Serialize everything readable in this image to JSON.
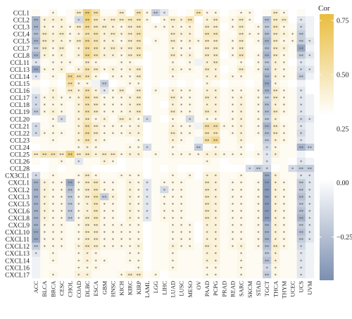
{
  "chart_data": {
    "type": "heatmap",
    "title": "",
    "legend": {
      "title": "Cor",
      "placement": "right",
      "ticks": [
        0.75,
        0.5,
        0.25,
        0.0,
        -0.25
      ],
      "tick_labels": [
        "0.75",
        "0.50",
        "0.25",
        "0.00",
        "−0.25"
      ],
      "range": [
        -0.45,
        0.78
      ]
    },
    "colorscale": {
      "low": "#7b8fb0",
      "mid": "#ffffff",
      "high": "#e9bd3f"
    },
    "rows": [
      "CCL1",
      "CCL2",
      "CCL3",
      "CCL4",
      "CCL5",
      "CCL7",
      "CCL8",
      "CCL11",
      "CCL13",
      "CCL14",
      "CCL15",
      "CCL16",
      "CCL17",
      "CCL18",
      "CCL19",
      "CCL20",
      "CCL21",
      "CCL22",
      "CCL23",
      "CCL24",
      "CCL25",
      "CCL26",
      "CCL28",
      "CX3CL1",
      "CXCL1",
      "CXCL2",
      "CXCL3",
      "CXCL5",
      "CXCL6",
      "CXCL8",
      "CXCL9",
      "CXCL10",
      "CXCL11",
      "CXCL12",
      "CXCL13",
      "CXCL14",
      "CXCL16",
      "CXCL17"
    ],
    "columns": [
      "ACC",
      "BLCA",
      "BRCA",
      "CESC",
      "CHOL",
      "COAD",
      "DLBC",
      "ESCA",
      "GBM",
      "HNSC",
      "KICH",
      "KIRC",
      "KIRP",
      "LAML",
      "LGG",
      "LIHC",
      "LUAD",
      "LUSC",
      "MESO",
      "OV",
      "PAAD",
      "PCPG",
      "PRAD",
      "READ",
      "SARC",
      "SKCM",
      "STAD",
      "TGCT",
      "THCA",
      "THYM",
      "UCEC",
      "UCS",
      "UVM"
    ],
    "values": [
      [
        0.05,
        0.0,
        0.1,
        0.0,
        0.05,
        0.2,
        0.55,
        0.35,
        0.05,
        0.05,
        0.2,
        0.0,
        0.3,
        0.1,
        -0.2,
        -0.1,
        0.05,
        0.0,
        0.05,
        0.3,
        0.1,
        0.1,
        0.0,
        0.05,
        0.1,
        0.1,
        0.0,
        0.05,
        0.2,
        0.1,
        0.0,
        0.05,
        0.0
      ],
      [
        -0.3,
        0.15,
        0.15,
        0.15,
        0.05,
        -0.15,
        0.5,
        0.25,
        0.15,
        0.2,
        0.2,
        0.25,
        0.25,
        0.1,
        0.0,
        0.1,
        0.2,
        0.15,
        0.3,
        0.0,
        0.15,
        0.2,
        0.05,
        0.1,
        0.2,
        0.1,
        0.0,
        -0.25,
        0.2,
        0.2,
        0.0,
        -0.1,
        -0.05
      ],
      [
        -0.3,
        0.15,
        0.1,
        0.15,
        0.1,
        0.2,
        0.4,
        0.25,
        0.2,
        0.15,
        0.1,
        0.2,
        0.25,
        0.05,
        0.1,
        0.1,
        0.15,
        0.1,
        0.15,
        0.05,
        0.2,
        0.2,
        0.0,
        0.1,
        0.2,
        0.05,
        0.1,
        -0.2,
        0.25,
        0.1,
        0.05,
        -0.15,
        -0.05
      ],
      [
        -0.25,
        0.2,
        0.15,
        0.2,
        0.1,
        0.15,
        0.3,
        0.3,
        0.15,
        0.2,
        0.15,
        0.2,
        0.3,
        0.05,
        0.05,
        0.05,
        0.2,
        0.15,
        0.15,
        0.05,
        0.25,
        0.25,
        0.05,
        0.05,
        0.2,
        0.1,
        0.1,
        -0.25,
        0.2,
        0.15,
        0.1,
        -0.2,
        -0.05
      ],
      [
        -0.3,
        0.2,
        0.15,
        0.15,
        0.1,
        0.2,
        0.4,
        0.3,
        0.15,
        0.15,
        0.1,
        0.2,
        0.25,
        0.0,
        0.1,
        0.05,
        0.2,
        0.1,
        0.15,
        0.1,
        0.2,
        0.2,
        0.05,
        0.1,
        0.2,
        0.05,
        0.1,
        -0.3,
        0.2,
        0.1,
        0.1,
        -0.2,
        -0.1
      ],
      [
        -0.2,
        0.2,
        0.1,
        0.2,
        0.05,
        0.15,
        0.4,
        0.3,
        0.15,
        0.2,
        0.15,
        0.2,
        0.25,
        0.05,
        0.05,
        0.05,
        0.15,
        0.1,
        0.1,
        0.05,
        0.2,
        0.2,
        0.05,
        0.1,
        0.2,
        0.05,
        0.05,
        -0.25,
        0.2,
        0.15,
        0.05,
        -0.35,
        -0.05
      ],
      [
        -0.3,
        0.15,
        0.1,
        0.15,
        0.05,
        0.15,
        0.45,
        0.3,
        0.15,
        0.15,
        0.1,
        0.2,
        0.25,
        0.0,
        0.05,
        0.05,
        0.2,
        0.1,
        0.15,
        0.05,
        0.2,
        0.2,
        0.0,
        0.1,
        0.25,
        0.05,
        0.1,
        -0.3,
        0.2,
        0.1,
        0.05,
        -0.2,
        -0.1
      ],
      [
        -0.1,
        0.05,
        0.1,
        0.1,
        0.1,
        0.05,
        0.2,
        0.1,
        0.05,
        0.05,
        0.1,
        0.1,
        0.05,
        0.0,
        0.05,
        0.05,
        0.1,
        0.05,
        0.1,
        -0.05,
        0.15,
        0.2,
        0.05,
        0.05,
        0.1,
        0.0,
        0.1,
        -0.2,
        0.15,
        0.1,
        0.0,
        -0.1,
        -0.05
      ],
      [
        -0.35,
        0.1,
        0.1,
        0.15,
        0.05,
        0.15,
        0.3,
        0.2,
        0.1,
        0.15,
        0.1,
        0.15,
        0.2,
        0.0,
        0.05,
        0.05,
        0.15,
        0.1,
        0.1,
        0.05,
        0.2,
        0.15,
        0.0,
        0.05,
        0.2,
        0.05,
        0.1,
        -0.25,
        0.15,
        0.1,
        0.05,
        -0.15,
        -0.1
      ],
      [
        -0.1,
        0.05,
        0.1,
        0.05,
        0.45,
        0.3,
        0.3,
        0.1,
        0.0,
        0.1,
        0.1,
        0.1,
        0.2,
        0.0,
        0.05,
        0.05,
        0.1,
        0.05,
        0.05,
        0.05,
        0.15,
        0.15,
        0.05,
        0.1,
        0.1,
        0.05,
        0.05,
        -0.3,
        0.15,
        0.1,
        0.05,
        -0.2,
        -0.05
      ],
      [
        0.05,
        0.0,
        0.05,
        0.0,
        0.35,
        0.1,
        0.1,
        -0.05,
        -0.2,
        0.0,
        0.05,
        0.1,
        0.1,
        0.0,
        0.05,
        0.0,
        0.05,
        0.0,
        0.05,
        0.0,
        0.1,
        0.05,
        0.0,
        0.05,
        0.05,
        0.0,
        0.05,
        -0.35,
        0.1,
        0.05,
        0.0,
        -0.05,
        0.0
      ],
      [
        -0.05,
        0.05,
        0.15,
        0.05,
        0.2,
        0.15,
        0.3,
        0.15,
        -0.1,
        0.1,
        0.2,
        0.05,
        0.2,
        0.0,
        0.1,
        0.05,
        0.15,
        0.1,
        0.1,
        0.05,
        0.15,
        0.15,
        0.05,
        0.1,
        0.1,
        0.05,
        0.1,
        -0.3,
        0.2,
        0.1,
        0.05,
        -0.1,
        0.0
      ],
      [
        -0.15,
        0.1,
        0.15,
        0.1,
        0.1,
        0.15,
        0.35,
        0.2,
        0.1,
        0.1,
        0.1,
        0.15,
        0.2,
        0.0,
        0.05,
        0.05,
        0.2,
        0.1,
        0.1,
        0.05,
        0.2,
        0.15,
        0.05,
        0.1,
        0.15,
        0.05,
        0.1,
        -0.2,
        0.2,
        0.1,
        0.05,
        -0.1,
        -0.05
      ],
      [
        -0.15,
        0.1,
        0.1,
        0.1,
        0.05,
        0.15,
        0.3,
        0.2,
        0.1,
        0.1,
        0.1,
        0.15,
        0.2,
        0.0,
        0.05,
        0.0,
        0.15,
        0.1,
        0.1,
        0.05,
        0.15,
        0.15,
        0.05,
        0.1,
        0.15,
        0.05,
        0.1,
        -0.25,
        0.15,
        0.1,
        0.05,
        -0.1,
        -0.05
      ],
      [
        -0.2,
        0.1,
        0.15,
        0.1,
        0.05,
        0.15,
        0.3,
        0.2,
        0.1,
        0.1,
        0.1,
        0.15,
        0.2,
        0.0,
        0.05,
        0.05,
        0.2,
        0.1,
        0.1,
        0.05,
        0.2,
        0.15,
        0.05,
        0.1,
        0.15,
        0.05,
        0.1,
        -0.25,
        0.2,
        0.1,
        0.05,
        -0.1,
        -0.05
      ],
      [
        0.0,
        0.05,
        0.1,
        -0.15,
        0.05,
        0.15,
        0.25,
        0.1,
        0.15,
        0.05,
        0.2,
        0.15,
        0.1,
        -0.15,
        0.05,
        0.0,
        0.1,
        0.05,
        -0.15,
        0.05,
        0.1,
        0.1,
        0.05,
        0.1,
        0.15,
        0.05,
        0.1,
        -0.2,
        0.15,
        0.05,
        0.05,
        -0.15,
        -0.1
      ],
      [
        -0.15,
        0.05,
        0.1,
        0.05,
        0.05,
        0.15,
        0.35,
        0.2,
        0.1,
        0.1,
        0.1,
        0.1,
        0.15,
        0.0,
        0.05,
        0.05,
        0.15,
        0.1,
        0.1,
        -0.05,
        0.35,
        0.35,
        0.1,
        0.1,
        0.15,
        0.05,
        0.1,
        -0.3,
        0.2,
        0.1,
        0.05,
        -0.1,
        -0.05
      ],
      [
        -0.15,
        0.1,
        0.1,
        0.1,
        0.05,
        0.15,
        0.35,
        0.2,
        0.1,
        0.1,
        0.1,
        0.15,
        0.15,
        0.0,
        0.05,
        0.05,
        0.2,
        0.1,
        0.1,
        0.05,
        0.25,
        0.25,
        0.05,
        0.1,
        0.15,
        0.05,
        0.1,
        -0.25,
        0.2,
        0.1,
        0.05,
        -0.15,
        -0.05
      ],
      [
        0.05,
        0.05,
        0.1,
        0.05,
        0.05,
        0.15,
        0.3,
        0.15,
        0.1,
        0.05,
        0.05,
        0.05,
        0.1,
        0.0,
        0.05,
        0.05,
        0.15,
        0.1,
        0.05,
        -0.05,
        0.35,
        0.45,
        0.05,
        0.05,
        0.15,
        0.05,
        0.05,
        -0.2,
        0.15,
        0.1,
        0.05,
        -0.1,
        -0.05
      ],
      [
        0.0,
        0.05,
        0.05,
        0.05,
        0.05,
        0.1,
        0.15,
        0.1,
        0.05,
        0.05,
        0.05,
        0.1,
        0.1,
        -0.15,
        0.05,
        0.05,
        0.1,
        0.05,
        0.05,
        -0.2,
        0.05,
        0.1,
        0.05,
        0.05,
        0.1,
        0.0,
        0.05,
        -0.15,
        0.1,
        0.05,
        0.05,
        -0.3,
        -0.2
      ],
      [
        0.2,
        0.3,
        0.3,
        0.2,
        0.55,
        0.2,
        0.25,
        0.15,
        0.2,
        0.2,
        0.1,
        0.15,
        0.15,
        0.05,
        0.1,
        0.05,
        0.1,
        0.1,
        0.1,
        0.1,
        0.15,
        0.15,
        0.1,
        0.1,
        0.1,
        0.05,
        0.1,
        -0.1,
        0.15,
        0.05,
        0.05,
        -0.05,
        0.0
      ],
      [
        0.05,
        0.0,
        0.05,
        0.1,
        0.05,
        -0.1,
        0.05,
        0.05,
        0.15,
        0.1,
        0.0,
        0.05,
        0.05,
        0.0,
        0.05,
        0.05,
        0.05,
        0.05,
        0.05,
        0.05,
        0.1,
        0.05,
        0.0,
        0.05,
        0.05,
        0.0,
        0.05,
        -0.1,
        0.05,
        0.05,
        0.0,
        -0.1,
        -0.05
      ],
      [
        0.0,
        0.0,
        0.05,
        0.0,
        0.05,
        0.05,
        0.05,
        0.0,
        0.0,
        0.0,
        0.0,
        0.05,
        0.05,
        0.0,
        0.05,
        0.0,
        0.05,
        0.0,
        0.0,
        0.0,
        0.05,
        0.05,
        0.0,
        0.0,
        0.0,
        -0.15,
        -0.2,
        -0.15,
        0.0,
        0.05,
        -0.15,
        -0.2,
        -0.2
      ],
      [
        -0.15,
        0.05,
        0.1,
        0.05,
        0.05,
        0.1,
        0.2,
        0.1,
        0.05,
        0.05,
        0.1,
        0.1,
        0.1,
        0.0,
        0.05,
        0.05,
        0.1,
        0.05,
        0.1,
        0.0,
        0.15,
        0.15,
        0.05,
        0.05,
        0.1,
        0.05,
        0.05,
        -0.35,
        0.15,
        0.05,
        0.05,
        -0.1,
        -0.1
      ],
      [
        -0.3,
        0.15,
        0.1,
        0.1,
        -0.35,
        0.1,
        0.2,
        0.25,
        0.1,
        0.1,
        0.05,
        0.15,
        0.1,
        -0.1,
        0.05,
        0.1,
        0.1,
        0.1,
        0.05,
        0.05,
        0.2,
        0.15,
        0.05,
        0.1,
        0.1,
        0.05,
        0.1,
        -0.4,
        0.15,
        0.1,
        0.05,
        -0.2,
        -0.1
      ],
      [
        -0.3,
        0.15,
        0.1,
        0.1,
        -0.25,
        0.1,
        0.2,
        0.25,
        0.1,
        0.1,
        0.05,
        0.15,
        0.1,
        -0.1,
        0.05,
        -0.15,
        0.1,
        0.1,
        0.05,
        0.05,
        0.2,
        0.15,
        0.05,
        0.1,
        0.1,
        0.05,
        0.1,
        -0.4,
        0.15,
        0.1,
        0.05,
        -0.2,
        -0.1
      ],
      [
        -0.3,
        0.15,
        0.1,
        0.1,
        -0.2,
        0.1,
        0.2,
        0.3,
        -0.2,
        0.15,
        0.05,
        0.15,
        0.1,
        -0.1,
        0.05,
        0.1,
        0.1,
        0.1,
        0.05,
        0.05,
        0.2,
        0.15,
        0.05,
        0.1,
        0.1,
        0.05,
        0.1,
        -0.4,
        0.15,
        0.1,
        0.05,
        -0.25,
        -0.1
      ],
      [
        -0.3,
        0.15,
        0.1,
        0.1,
        -0.2,
        0.1,
        0.15,
        0.25,
        0.1,
        0.1,
        0.05,
        0.15,
        0.1,
        -0.1,
        0.05,
        0.1,
        0.1,
        0.1,
        0.05,
        0.05,
        0.2,
        0.15,
        0.05,
        0.1,
        0.1,
        0.05,
        0.1,
        -0.4,
        0.15,
        0.1,
        0.05,
        -0.2,
        -0.1
      ],
      [
        -0.3,
        0.15,
        0.1,
        0.1,
        -0.2,
        0.1,
        0.15,
        0.25,
        0.1,
        0.1,
        0.05,
        0.15,
        0.1,
        -0.1,
        0.05,
        0.1,
        0.1,
        0.1,
        0.05,
        0.05,
        0.2,
        0.15,
        0.05,
        0.1,
        0.1,
        0.05,
        0.1,
        -0.4,
        0.15,
        0.1,
        0.05,
        -0.25,
        -0.1
      ],
      [
        -0.3,
        0.15,
        0.1,
        0.1,
        -0.2,
        0.1,
        0.2,
        0.25,
        0.1,
        0.1,
        0.05,
        0.15,
        0.1,
        -0.1,
        0.05,
        0.1,
        0.1,
        0.1,
        0.05,
        0.05,
        0.2,
        0.15,
        0.05,
        0.1,
        0.1,
        0.05,
        0.1,
        -0.4,
        0.15,
        0.1,
        0.05,
        -0.3,
        -0.1
      ],
      [
        -0.3,
        0.1,
        0.1,
        0.1,
        0.05,
        0.1,
        0.2,
        0.2,
        0.1,
        0.1,
        0.1,
        0.1,
        0.1,
        0.0,
        0.05,
        0.05,
        0.1,
        0.1,
        0.1,
        0.0,
        0.15,
        0.15,
        0.05,
        0.1,
        0.1,
        0.05,
        0.1,
        -0.3,
        0.15,
        0.1,
        0.05,
        -0.2,
        -0.1
      ],
      [
        -0.35,
        0.1,
        0.1,
        0.1,
        0.05,
        0.1,
        0.2,
        0.2,
        0.1,
        0.1,
        0.1,
        0.1,
        0.1,
        0.0,
        0.05,
        0.05,
        0.1,
        0.1,
        0.1,
        0.0,
        0.15,
        0.15,
        0.05,
        0.1,
        0.1,
        0.05,
        0.1,
        -0.3,
        0.15,
        0.1,
        0.05,
        -0.25,
        -0.1
      ],
      [
        -0.35,
        0.1,
        0.1,
        0.1,
        0.05,
        0.1,
        0.2,
        0.2,
        0.1,
        0.1,
        0.1,
        0.1,
        0.1,
        0.0,
        0.05,
        0.05,
        0.1,
        0.1,
        0.1,
        0.0,
        0.15,
        0.15,
        0.05,
        0.1,
        0.1,
        0.05,
        0.1,
        -0.3,
        0.15,
        0.1,
        0.05,
        -0.2,
        -0.1
      ],
      [
        -0.2,
        0.1,
        0.1,
        0.1,
        0.05,
        0.15,
        0.25,
        0.2,
        0.1,
        0.1,
        0.1,
        0.1,
        0.15,
        0.0,
        0.05,
        0.05,
        0.15,
        0.1,
        0.1,
        0.05,
        0.2,
        0.15,
        0.05,
        0.1,
        0.15,
        0.05,
        0.1,
        -0.25,
        0.2,
        0.1,
        0.05,
        -0.15,
        -0.05
      ],
      [
        -0.1,
        0.05,
        0.1,
        0.05,
        0.05,
        0.1,
        0.15,
        0.1,
        0.05,
        0.05,
        0.05,
        0.1,
        0.1,
        0.0,
        0.05,
        0.05,
        0.1,
        0.05,
        0.05,
        0.05,
        0.15,
        0.15,
        0.05,
        0.05,
        0.1,
        0.05,
        0.05,
        -0.2,
        0.15,
        0.05,
        0.05,
        -0.1,
        -0.05
      ],
      [
        -0.05,
        0.05,
        0.1,
        0.05,
        0.05,
        0.1,
        0.15,
        0.1,
        0.1,
        0.05,
        0.05,
        0.1,
        0.1,
        0.0,
        0.05,
        0.05,
        0.1,
        0.05,
        0.05,
        0.05,
        0.15,
        0.15,
        0.05,
        0.05,
        0.1,
        0.05,
        0.05,
        -0.25,
        0.15,
        0.05,
        0.05,
        -0.1,
        -0.05
      ],
      [
        -0.05,
        0.05,
        0.05,
        0.05,
        0.05,
        0.1,
        0.1,
        0.1,
        0.05,
        0.05,
        0.05,
        0.05,
        0.1,
        0.0,
        0.05,
        0.05,
        0.1,
        0.05,
        0.05,
        0.05,
        0.1,
        0.1,
        0.05,
        0.05,
        0.1,
        0.05,
        0.05,
        -0.15,
        0.1,
        0.05,
        0.05,
        -0.1,
        -0.05
      ],
      [
        -0.05,
        0.05,
        0.1,
        0.05,
        0.05,
        0.15,
        0.15,
        0.05,
        0.05,
        0.05,
        0.1,
        0.2,
        0.2,
        0.05,
        0.1,
        0.0,
        0.05,
        0.05,
        0.05,
        0.05,
        0.1,
        0.1,
        0.05,
        0.05,
        0.1,
        0.05,
        0.05,
        -0.2,
        0.1,
        0.05,
        0.05,
        -0.1,
        -0.05
      ]
    ]
  }
}
